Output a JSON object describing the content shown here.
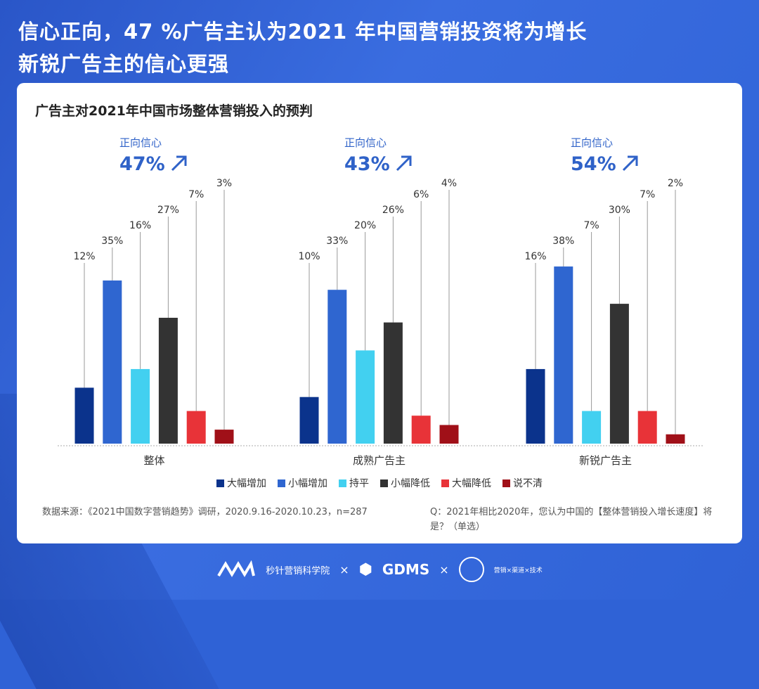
{
  "header": {
    "title_line1": "信心正向，47 %广告主认为2021 年中国营销投资将为增长",
    "title_line2": "新锐广告主的信心更强"
  },
  "chart_data": {
    "type": "bar",
    "title": "广告主对2021年中国市场整体营销投入的预判",
    "categories": [
      "整体",
      "成熟广告主",
      "新锐广告主"
    ],
    "series": [
      {
        "name": "大幅增加",
        "color": "#0b338c",
        "values": [
          12,
          10,
          16
        ]
      },
      {
        "name": "小幅增加",
        "color": "#2f66d0",
        "values": [
          35,
          33,
          38
        ]
      },
      {
        "name": "持平",
        "color": "#42d0f0",
        "values": [
          16,
          20,
          7
        ]
      },
      {
        "name": "小幅降低",
        "color": "#333333",
        "values": [
          27,
          26,
          30
        ]
      },
      {
        "name": "大幅降低",
        "color": "#e83338",
        "values": [
          7,
          6,
          7
        ]
      },
      {
        "name": "说不清",
        "color": "#a01018",
        "values": [
          3,
          4,
          2
        ]
      }
    ],
    "value_suffix": "%",
    "ylim": [
      0,
      40
    ],
    "legend": "bottom",
    "annotations": [
      {
        "label": "正向信心",
        "value": "47%"
      },
      {
        "label": "正向信心",
        "value": "43%"
      },
      {
        "label": "正向信心",
        "value": "54%"
      }
    ]
  },
  "notes": {
    "source": "数据来源：《2021中国数字营销趋势》调研，2020.9.16-2020.10.23，n=287",
    "question": "Q：2021年相比2020年，您认为中国的【整体营销投入增长速度】将是？（单选）"
  },
  "footer": {
    "brand1": "秒针营销科学院",
    "sep": "×",
    "brand2": "GDMS",
    "brand3": "营销×渠道×技术"
  }
}
